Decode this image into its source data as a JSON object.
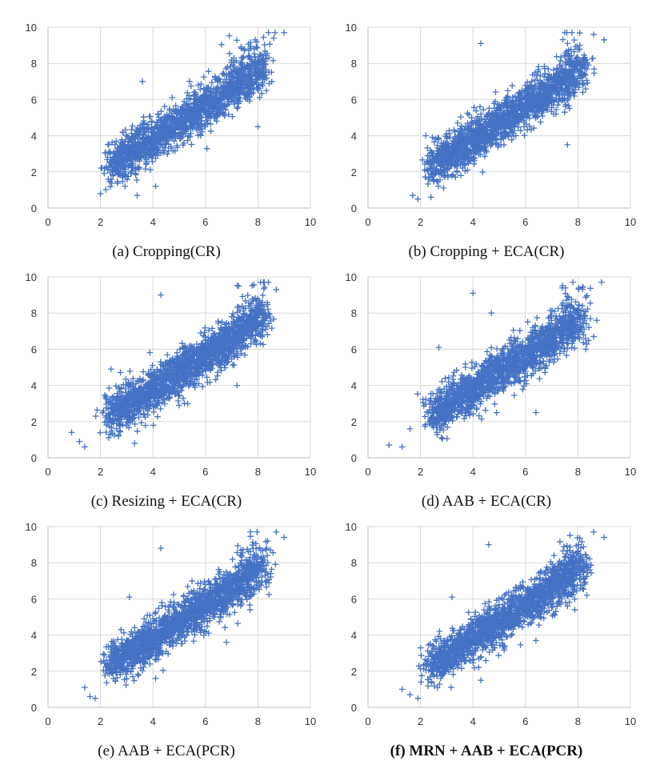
{
  "colors": {
    "marker": "#4472c4",
    "grid": "#d9d9d9"
  },
  "chart_data": [
    {
      "id": "a",
      "type": "scatter",
      "marker": "+",
      "title": "(a) Cropping(CR)",
      "bold": false,
      "xlim": [
        0,
        10
      ],
      "ylim": [
        0,
        10
      ],
      "xticks": [
        0,
        2,
        4,
        6,
        8,
        10
      ],
      "yticks": [
        0,
        2,
        4,
        6,
        8,
        10
      ],
      "grid": true,
      "n_points": 1700,
      "seed": 11,
      "points": [
        [
          2.0,
          0.8
        ],
        [
          2.3,
          1.6
        ],
        [
          2.6,
          3.7
        ],
        [
          3.4,
          0.7
        ],
        [
          4.1,
          1.2
        ],
        [
          8.0,
          4.5
        ],
        [
          9.0,
          9.7
        ],
        [
          8.6,
          9.4
        ],
        [
          3.6,
          7.0
        ],
        [
          7.9,
          9.3
        ]
      ]
    },
    {
      "id": "b",
      "type": "scatter",
      "marker": "+",
      "title": "(b) Cropping + ECA(CR)",
      "bold": false,
      "xlim": [
        0,
        10
      ],
      "ylim": [
        0,
        10
      ],
      "xticks": [
        0,
        2,
        4,
        6,
        8,
        10
      ],
      "yticks": [
        0,
        2,
        4,
        6,
        8,
        10
      ],
      "grid": true,
      "n_points": 1700,
      "seed": 23,
      "points": [
        [
          1.7,
          0.7
        ],
        [
          1.9,
          0.5
        ],
        [
          2.4,
          0.6
        ],
        [
          2.7,
          1.9
        ],
        [
          4.3,
          9.1
        ],
        [
          8.6,
          9.6
        ],
        [
          9.0,
          9.3
        ],
        [
          7.6,
          3.5
        ],
        [
          4.9,
          3.6
        ],
        [
          2.2,
          4.0
        ]
      ]
    },
    {
      "id": "c",
      "type": "scatter",
      "marker": "+",
      "title": "(c) Resizing + ECA(CR)",
      "bold": false,
      "xlim": [
        0,
        10
      ],
      "ylim": [
        0,
        10
      ],
      "xticks": [
        0,
        2,
        4,
        6,
        8,
        10
      ],
      "yticks": [
        0,
        2,
        4,
        6,
        8,
        10
      ],
      "grid": true,
      "n_points": 1800,
      "seed": 37,
      "points": [
        [
          0.9,
          1.4
        ],
        [
          1.2,
          0.9
        ],
        [
          1.4,
          0.6
        ],
        [
          2.4,
          4.9
        ],
        [
          4.3,
          9.0
        ],
        [
          8.4,
          9.7
        ],
        [
          8.7,
          9.3
        ],
        [
          7.2,
          4.0
        ],
        [
          3.3,
          0.8
        ],
        [
          5.2,
          3.0
        ]
      ]
    },
    {
      "id": "d",
      "type": "scatter",
      "marker": "+",
      "title": "(d) AAB + ECA(CR)",
      "bold": false,
      "xlim": [
        0,
        10
      ],
      "ylim": [
        0,
        10
      ],
      "xticks": [
        0,
        2,
        4,
        6,
        8,
        10
      ],
      "yticks": [
        0,
        2,
        4,
        6,
        8,
        10
      ],
      "grid": true,
      "n_points": 1700,
      "seed": 41,
      "points": [
        [
          0.8,
          0.7
        ],
        [
          1.3,
          0.6
        ],
        [
          1.6,
          1.6
        ],
        [
          2.7,
          6.1
        ],
        [
          4.0,
          9.1
        ],
        [
          8.9,
          9.7
        ],
        [
          8.6,
          6.7
        ],
        [
          6.4,
          2.5
        ],
        [
          4.7,
          8.0
        ],
        [
          8.3,
          6.0
        ]
      ]
    },
    {
      "id": "e",
      "type": "scatter",
      "marker": "+",
      "title": "(e) AAB + ECA(PCR)",
      "bold": false,
      "xlim": [
        0,
        10
      ],
      "ylim": [
        0,
        10
      ],
      "xticks": [
        0,
        2,
        4,
        6,
        8,
        10
      ],
      "yticks": [
        0,
        2,
        4,
        6,
        8,
        10
      ],
      "grid": true,
      "n_points": 1700,
      "seed": 53,
      "points": [
        [
          1.4,
          1.1
        ],
        [
          1.6,
          0.6
        ],
        [
          1.8,
          0.5
        ],
        [
          3.1,
          6.1
        ],
        [
          4.3,
          8.8
        ],
        [
          8.7,
          9.7
        ],
        [
          9.0,
          9.4
        ],
        [
          7.7,
          5.4
        ],
        [
          4.1,
          1.6
        ],
        [
          6.8,
          3.6
        ]
      ]
    },
    {
      "id": "f",
      "type": "scatter",
      "marker": "+",
      "title": "(f) MRN + AAB + ECA(PCR)",
      "bold": true,
      "xlim": [
        0,
        10
      ],
      "ylim": [
        0,
        10
      ],
      "xticks": [
        0,
        2,
        4,
        6,
        8,
        10
      ],
      "yticks": [
        0,
        2,
        4,
        6,
        8,
        10
      ],
      "grid": true,
      "n_points": 1700,
      "seed": 67,
      "points": [
        [
          1.3,
          1.0
        ],
        [
          1.6,
          0.7
        ],
        [
          1.9,
          0.5
        ],
        [
          3.2,
          6.1
        ],
        [
          4.6,
          9.0
        ],
        [
          8.6,
          9.7
        ],
        [
          9.0,
          9.4
        ],
        [
          7.6,
          5.6
        ],
        [
          4.3,
          1.5
        ],
        [
          6.4,
          3.7
        ]
      ]
    }
  ]
}
